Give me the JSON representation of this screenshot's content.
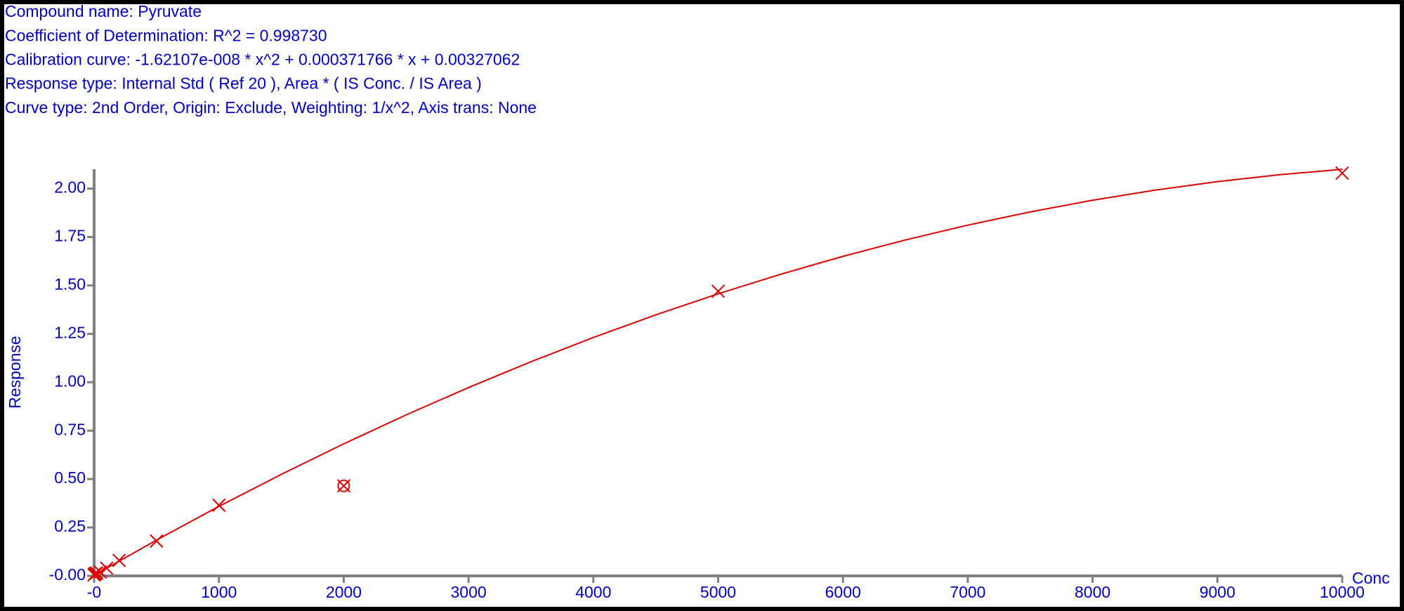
{
  "chart_data": {
    "type": "calibration",
    "header": [
      "Compound name: Pyruvate",
      "Coefficient of Determination: R^2 = 0.998730",
      "Calibration curve: -1.62107e-008 * x^2 + 0.000371766 * x + 0.00327062",
      "Response type: Internal Std ( Ref 20 ), Area * ( IS Conc. / IS Area )",
      "Curve type: 2nd Order, Origin: Exclude, Weighting: 1/x^2, Axis trans: None"
    ],
    "x_label": "Conc",
    "y_label": "Response",
    "xlim": [
      0,
      10000
    ],
    "ylim": [
      0,
      2.1
    ],
    "xticks": [
      {
        "value": 0,
        "label": "-0"
      },
      1000,
      2000,
      3000,
      4000,
      5000,
      6000,
      7000,
      8000,
      9000,
      10000
    ],
    "yticks": [
      {
        "value": 0,
        "label": "-0.00"
      },
      {
        "value": 0.25,
        "label": "0.25"
      },
      {
        "value": 0.5,
        "label": "0.50"
      },
      {
        "value": 0.75,
        "label": "0.75"
      },
      {
        "value": 1,
        "label": "1.00"
      },
      {
        "value": 1.25,
        "label": "1.25"
      },
      {
        "value": 1.5,
        "label": "1.50"
      },
      {
        "value": 1.75,
        "label": "1.75"
      },
      {
        "value": 2,
        "label": "2.00"
      }
    ],
    "points": {
      "color": "#e00000",
      "x": [
        0,
        5,
        10,
        20,
        50,
        100,
        200,
        500,
        1000,
        5000,
        10000
      ],
      "values": [
        0.005,
        0.01,
        0.012,
        0.015,
        0.02,
        0.04,
        0.08,
        0.18,
        0.365,
        1.47,
        2.08
      ]
    },
    "excluded_points": {
      "color": "#e00000",
      "x": [
        2000
      ],
      "values": [
        0.465
      ]
    },
    "fit": {
      "color": "#e00000",
      "x": [
        0,
        500,
        1000,
        1500,
        2000,
        2500,
        3000,
        3500,
        4000,
        4500,
        5000,
        5500,
        6000,
        6500,
        7000,
        7500,
        8000,
        8500,
        9000,
        9500,
        10000
      ],
      "values": [
        0.0033,
        0.1851,
        0.3589,
        0.5244,
        0.682,
        0.8314,
        0.9727,
        1.1059,
        1.231,
        1.348,
        1.4568,
        1.5576,
        1.6503,
        1.7349,
        1.8114,
        1.8797,
        1.9399,
        1.9921,
        2.0361,
        2.072,
        2.0999
      ]
    },
    "text_color": "#0000cc",
    "axis_color": "#808080"
  }
}
